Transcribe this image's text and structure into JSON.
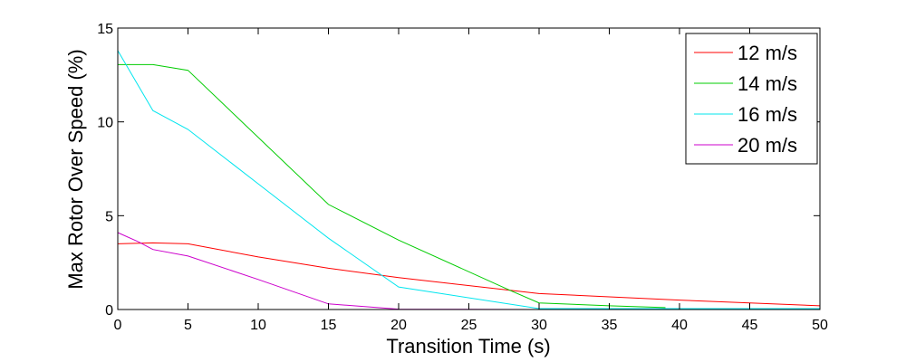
{
  "chart_data": {
    "type": "line",
    "xlabel": "Transition Time (s)",
    "ylabel": "Max Rotor Over Speed (%)",
    "xlim": [
      0,
      50
    ],
    "ylim": [
      0,
      15
    ],
    "xticks": [
      0,
      5,
      10,
      15,
      20,
      25,
      30,
      35,
      40,
      45,
      50
    ],
    "yticks": [
      0,
      5,
      10,
      15
    ],
    "grid": false,
    "legend_position": "top-right",
    "series": [
      {
        "name": "12 m/s",
        "color": "#ff0000",
        "x": [
          0,
          2.5,
          5,
          10,
          15,
          20,
          30,
          40,
          50
        ],
        "y": [
          3.5,
          3.55,
          3.5,
          2.8,
          2.2,
          1.7,
          0.85,
          0.5,
          0.2
        ]
      },
      {
        "name": "14 m/s",
        "color": "#00cc00",
        "x": [
          0,
          2.5,
          5,
          15,
          20,
          28,
          30,
          35,
          39
        ],
        "y": [
          13.05,
          13.05,
          12.75,
          5.6,
          3.7,
          1.0,
          0.35,
          0.2,
          0.1
        ]
      },
      {
        "name": "16 m/s",
        "color": "#00e5ee",
        "x": [
          0,
          2.5,
          5,
          10,
          15,
          20,
          30,
          40,
          50
        ],
        "y": [
          13.8,
          10.6,
          9.6,
          6.7,
          3.8,
          1.2,
          0.05,
          0.05,
          0.05
        ]
      },
      {
        "name": "20 m/s",
        "color": "#cc00cc",
        "x": [
          0,
          1.5,
          2.5,
          5,
          10,
          15,
          20,
          30,
          50
        ],
        "y": [
          4.1,
          3.6,
          3.2,
          2.85,
          1.6,
          0.3,
          0.02,
          0.0,
          0.0
        ]
      }
    ]
  }
}
